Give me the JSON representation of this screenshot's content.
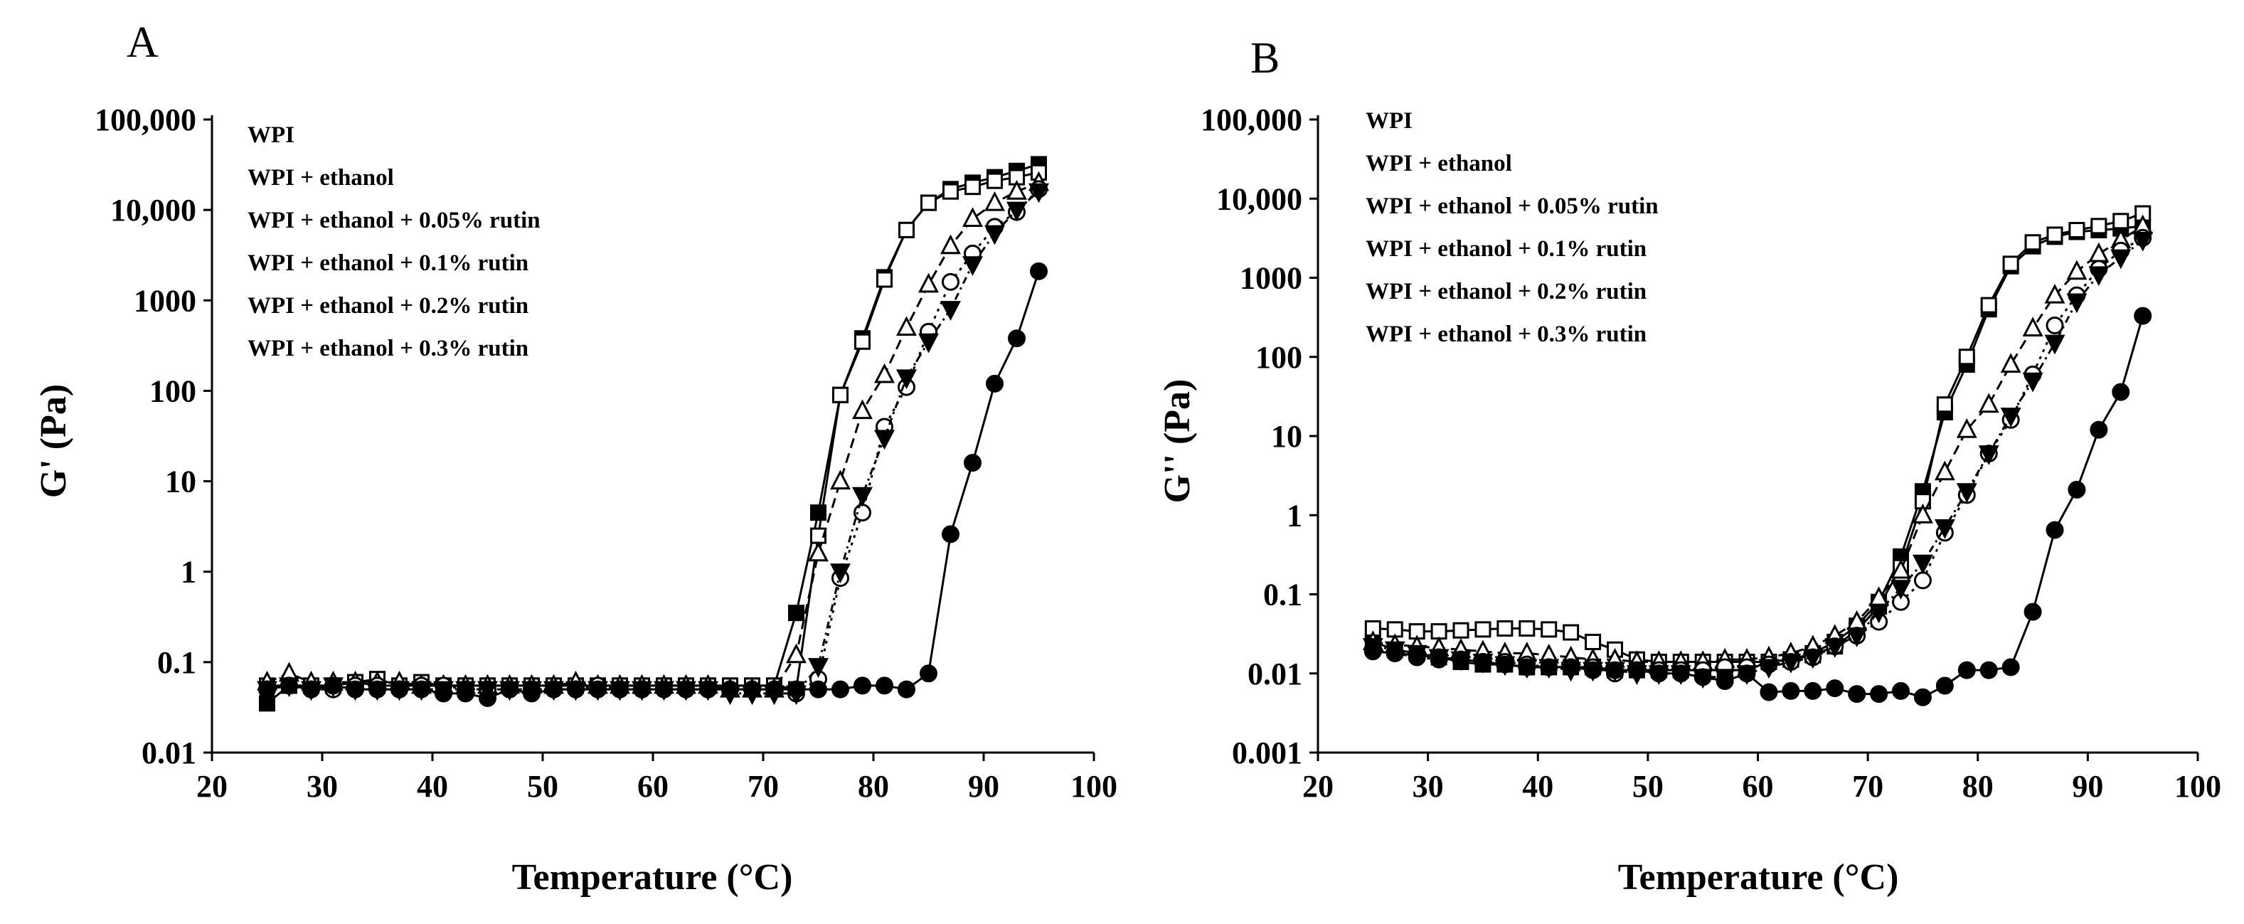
{
  "chart_data": [
    {
      "panel": "A",
      "type": "line",
      "scale_y": "log",
      "xlabel": "Temperature (°C)",
      "ylabel": "G' (Pa)",
      "xlim": [
        20,
        100
      ],
      "ylim": [
        0.01,
        100000
      ],
      "x_ticks": [
        "20",
        "30",
        "40",
        "50",
        "60",
        "70",
        "80",
        "90",
        "100"
      ],
      "y_ticks": [
        "0.01",
        "0.1",
        "1",
        "10",
        "100",
        "1000",
        "10,000",
        "100,000"
      ],
      "legend": [
        "WPI",
        "WPI + ethanol",
        "WPI + ethanol + 0.05% rutin",
        "WPI + ethanol + 0.1% rutin",
        "WPI + ethanol + 0.2% rutin",
        "WPI + ethanol + 0.3% rutin"
      ],
      "series": [
        {
          "name": "WPI",
          "marker": "square-filled",
          "x": [
            25,
            27,
            29,
            31,
            33,
            35,
            37,
            39,
            41,
            43,
            45,
            47,
            49,
            51,
            53,
            55,
            57,
            59,
            61,
            63,
            65,
            67,
            69,
            71,
            73,
            75,
            77,
            79,
            81,
            83,
            85,
            87,
            89,
            91,
            93,
            95
          ],
          "y": [
            0.035,
            0.055,
            0.055,
            0.055,
            0.06,
            0.055,
            0.055,
            0.055,
            0.055,
            0.055,
            0.055,
            0.055,
            0.055,
            0.055,
            0.055,
            0.055,
            0.055,
            0.055,
            0.055,
            0.055,
            0.055,
            0.055,
            0.055,
            0.055,
            0.35,
            4.5,
            90,
            380,
            1800,
            6000,
            12000,
            17000,
            20000,
            23000,
            27000,
            32000
          ]
        },
        {
          "name": "WPI + ethanol",
          "marker": "square-open",
          "x": [
            25,
            27,
            29,
            31,
            33,
            35,
            37,
            39,
            41,
            43,
            45,
            47,
            49,
            51,
            53,
            55,
            57,
            59,
            61,
            63,
            65,
            67,
            69,
            71,
            73,
            75,
            77,
            79,
            81,
            83,
            85,
            87,
            89,
            91,
            93,
            95
          ],
          "y": [
            0.055,
            0.055,
            0.055,
            0.055,
            0.06,
            0.065,
            0.055,
            0.06,
            0.055,
            0.055,
            0.055,
            0.055,
            0.055,
            0.055,
            0.055,
            0.055,
            0.055,
            0.055,
            0.055,
            0.055,
            0.055,
            0.055,
            0.055,
            0.055,
            0.05,
            2.5,
            90,
            350,
            1700,
            6000,
            12000,
            16000,
            18000,
            21000,
            23000,
            26000
          ]
        },
        {
          "name": "WPI + ethanol + 0.05% rutin",
          "marker": "triangle-up-open",
          "x": [
            25,
            27,
            29,
            31,
            33,
            35,
            37,
            39,
            41,
            43,
            45,
            47,
            49,
            51,
            53,
            55,
            57,
            59,
            61,
            63,
            65,
            67,
            69,
            71,
            73,
            75,
            77,
            79,
            81,
            83,
            85,
            87,
            89,
            91,
            93,
            95
          ],
          "y": [
            0.06,
            0.075,
            0.06,
            0.06,
            0.06,
            0.06,
            0.06,
            0.055,
            0.055,
            0.055,
            0.055,
            0.055,
            0.055,
            0.055,
            0.06,
            0.055,
            0.055,
            0.055,
            0.055,
            0.055,
            0.055,
            0.05,
            0.05,
            0.05,
            0.12,
            1.6,
            10,
            60,
            150,
            500,
            1500,
            4000,
            8000,
            12000,
            16000,
            20000
          ]
        },
        {
          "name": "WPI + ethanol + 0.1% rutin",
          "marker": "circle-open",
          "x": [
            25,
            27,
            29,
            31,
            33,
            35,
            37,
            39,
            41,
            43,
            45,
            47,
            49,
            51,
            53,
            55,
            57,
            59,
            61,
            63,
            65,
            67,
            69,
            71,
            73,
            75,
            77,
            79,
            81,
            83,
            85,
            87,
            89,
            91,
            93,
            95
          ],
          "y": [
            0.05,
            0.055,
            0.05,
            0.05,
            0.055,
            0.055,
            0.05,
            0.055,
            0.055,
            0.05,
            0.05,
            0.05,
            0.05,
            0.05,
            0.05,
            0.055,
            0.05,
            0.05,
            0.05,
            0.05,
            0.05,
            0.05,
            0.05,
            0.05,
            0.045,
            0.065,
            0.85,
            4.5,
            40,
            110,
            450,
            1600,
            3300,
            6500,
            9500,
            17000
          ]
        },
        {
          "name": "WPI + ethanol + 0.2% rutin",
          "marker": "triangle-down-filled",
          "x": [
            25,
            27,
            29,
            31,
            33,
            35,
            37,
            39,
            41,
            43,
            45,
            47,
            49,
            51,
            53,
            55,
            57,
            59,
            61,
            63,
            65,
            67,
            69,
            71,
            73,
            75,
            77,
            79,
            81,
            83,
            85,
            87,
            89,
            91,
            93,
            95
          ],
          "y": [
            0.05,
            0.055,
            0.05,
            0.055,
            0.05,
            0.05,
            0.05,
            0.05,
            0.05,
            0.05,
            0.05,
            0.05,
            0.05,
            0.05,
            0.05,
            0.05,
            0.05,
            0.05,
            0.05,
            0.05,
            0.05,
            0.045,
            0.045,
            0.045,
            0.045,
            0.09,
            1,
            7,
            30,
            140,
            350,
            800,
            2500,
            5500,
            10000,
            16000
          ]
        },
        {
          "name": "WPI + ethanol + 0.3% rutin",
          "marker": "circle-filled",
          "x": [
            25,
            27,
            29,
            31,
            33,
            35,
            37,
            39,
            41,
            43,
            45,
            47,
            49,
            51,
            53,
            55,
            57,
            59,
            61,
            63,
            65,
            67,
            69,
            71,
            73,
            75,
            77,
            79,
            81,
            83,
            85,
            87,
            89,
            91,
            93,
            95
          ],
          "y": [
            0.05,
            0.055,
            0.05,
            0.055,
            0.05,
            0.05,
            0.05,
            0.05,
            0.045,
            0.045,
            0.04,
            0.05,
            0.045,
            0.05,
            0.05,
            0.05,
            0.05,
            0.05,
            0.05,
            0.05,
            0.05,
            0.05,
            0.05,
            0.05,
            0.05,
            0.05,
            0.05,
            0.055,
            0.055,
            0.05,
            0.075,
            2.6,
            16,
            120,
            380,
            2100
          ]
        }
      ]
    },
    {
      "panel": "B",
      "type": "line",
      "scale_y": "log",
      "xlabel": "Temperature (°C)",
      "ylabel": "G'' (Pa)",
      "xlim": [
        20,
        100
      ],
      "ylim": [
        0.001,
        100000
      ],
      "x_ticks": [
        "20",
        "30",
        "40",
        "50",
        "60",
        "70",
        "80",
        "90",
        "100"
      ],
      "y_ticks": [
        "0.001",
        "0.01",
        "0.1",
        "1",
        "10",
        "100",
        "1000",
        "10,000",
        "100,000"
      ],
      "legend": [
        "WPI",
        "WPI + ethanol",
        "WPI + ethanol + 0.05% rutin",
        "WPI + ethanol + 0.1% rutin",
        "WPI + ethanol + 0.2% rutin",
        "WPI + ethanol + 0.3% rutin"
      ],
      "series": [
        {
          "name": "WPI",
          "marker": "square-filled",
          "x": [
            25,
            27,
            29,
            31,
            33,
            35,
            37,
            39,
            41,
            43,
            45,
            47,
            49,
            51,
            53,
            55,
            57,
            59,
            61,
            63,
            65,
            67,
            69,
            71,
            73,
            75,
            77,
            79,
            81,
            83,
            85,
            87,
            89,
            91,
            93,
            95
          ],
          "y": [
            0.025,
            0.02,
            0.018,
            0.016,
            0.014,
            0.013,
            0.013,
            0.012,
            0.012,
            0.012,
            0.012,
            0.011,
            0.011,
            0.011,
            0.011,
            0.011,
            0.011,
            0.011,
            0.014,
            0.015,
            0.018,
            0.025,
            0.04,
            0.08,
            0.3,
            2,
            20,
            80,
            400,
            1400,
            2500,
            3300,
            3800,
            4000,
            4200,
            4500
          ]
        },
        {
          "name": "WPI + ethanol",
          "marker": "square-open",
          "x": [
            25,
            27,
            29,
            31,
            33,
            35,
            37,
            39,
            41,
            43,
            45,
            47,
            49,
            51,
            53,
            55,
            57,
            59,
            61,
            63,
            65,
            67,
            69,
            71,
            73,
            75,
            77,
            79,
            81,
            83,
            85,
            87,
            89,
            91,
            93,
            95
          ],
          "y": [
            0.037,
            0.036,
            0.034,
            0.034,
            0.035,
            0.036,
            0.037,
            0.037,
            0.036,
            0.033,
            0.025,
            0.02,
            0.015,
            0.014,
            0.014,
            0.014,
            0.014,
            0.014,
            0.014,
            0.015,
            0.017,
            0.022,
            0.035,
            0.07,
            0.22,
            1.5,
            25,
            100,
            450,
            1500,
            2800,
            3500,
            4000,
            4500,
            5200,
            6500
          ]
        },
        {
          "name": "WPI + ethanol + 0.05% rutin",
          "marker": "triangle-up-open",
          "x": [
            25,
            27,
            29,
            31,
            33,
            35,
            37,
            39,
            41,
            43,
            45,
            47,
            49,
            51,
            53,
            55,
            57,
            59,
            61,
            63,
            65,
            67,
            69,
            71,
            73,
            75,
            77,
            79,
            81,
            83,
            85,
            87,
            89,
            91,
            93,
            95
          ],
          "y": [
            0.025,
            0.023,
            0.022,
            0.021,
            0.02,
            0.019,
            0.018,
            0.018,
            0.017,
            0.016,
            0.015,
            0.015,
            0.014,
            0.014,
            0.014,
            0.014,
            0.015,
            0.015,
            0.016,
            0.018,
            0.022,
            0.03,
            0.045,
            0.09,
            0.2,
            1,
            3.5,
            12,
            25,
            80,
            230,
            600,
            1200,
            2000,
            3000,
            4500
          ]
        },
        {
          "name": "WPI + ethanol + 0.1% rutin",
          "marker": "circle-open",
          "x": [
            25,
            27,
            29,
            31,
            33,
            35,
            37,
            39,
            41,
            43,
            45,
            47,
            49,
            51,
            53,
            55,
            57,
            59,
            61,
            63,
            65,
            67,
            69,
            71,
            73,
            75,
            77,
            79,
            81,
            83,
            85,
            87,
            89,
            91,
            93,
            95
          ],
          "y": [
            0.02,
            0.018,
            0.016,
            0.015,
            0.015,
            0.014,
            0.014,
            0.013,
            0.012,
            0.012,
            0.012,
            0.01,
            0.011,
            0.011,
            0.011,
            0.011,
            0.012,
            0.012,
            0.013,
            0.014,
            0.016,
            0.022,
            0.03,
            0.045,
            0.08,
            0.15,
            0.6,
            1.8,
            6,
            16,
            60,
            250,
            600,
            1300,
            2200,
            3200
          ]
        },
        {
          "name": "WPI + ethanol + 0.2% rutin",
          "marker": "triangle-down-filled",
          "x": [
            25,
            27,
            29,
            31,
            33,
            35,
            37,
            39,
            41,
            43,
            45,
            47,
            49,
            51,
            53,
            55,
            57,
            59,
            61,
            63,
            65,
            67,
            69,
            71,
            73,
            75,
            77,
            79,
            81,
            83,
            85,
            87,
            89,
            91,
            93,
            95
          ],
          "y": [
            0.022,
            0.02,
            0.018,
            0.016,
            0.015,
            0.014,
            0.013,
            0.012,
            0.012,
            0.011,
            0.011,
            0.011,
            0.01,
            0.01,
            0.01,
            0.009,
            0.009,
            0.01,
            0.012,
            0.014,
            0.016,
            0.022,
            0.03,
            0.06,
            0.12,
            0.25,
            0.7,
            2,
            6,
            18,
            50,
            150,
            500,
            1100,
            1800,
            3000
          ]
        },
        {
          "name": "WPI + ethanol + 0.3% rutin",
          "marker": "circle-filled",
          "x": [
            25,
            27,
            29,
            31,
            33,
            35,
            37,
            39,
            41,
            43,
            45,
            47,
            49,
            51,
            53,
            55,
            57,
            59,
            61,
            63,
            65,
            67,
            69,
            71,
            73,
            75,
            77,
            79,
            81,
            83,
            85,
            87,
            89,
            91,
            93,
            95
          ],
          "y": [
            0.019,
            0.018,
            0.017,
            0.016,
            0.015,
            0.014,
            0.013,
            0.012,
            0.012,
            0.012,
            0.011,
            0.011,
            0.011,
            0.01,
            0.01,
            0.009,
            0.008,
            0.01,
            0.0058,
            0.006,
            0.006,
            0.0065,
            0.0055,
            0.0055,
            0.006,
            0.005,
            0.007,
            0.011,
            0.011,
            0.012,
            0.06,
            0.65,
            2.1,
            12,
            36,
            330
          ]
        }
      ]
    }
  ]
}
